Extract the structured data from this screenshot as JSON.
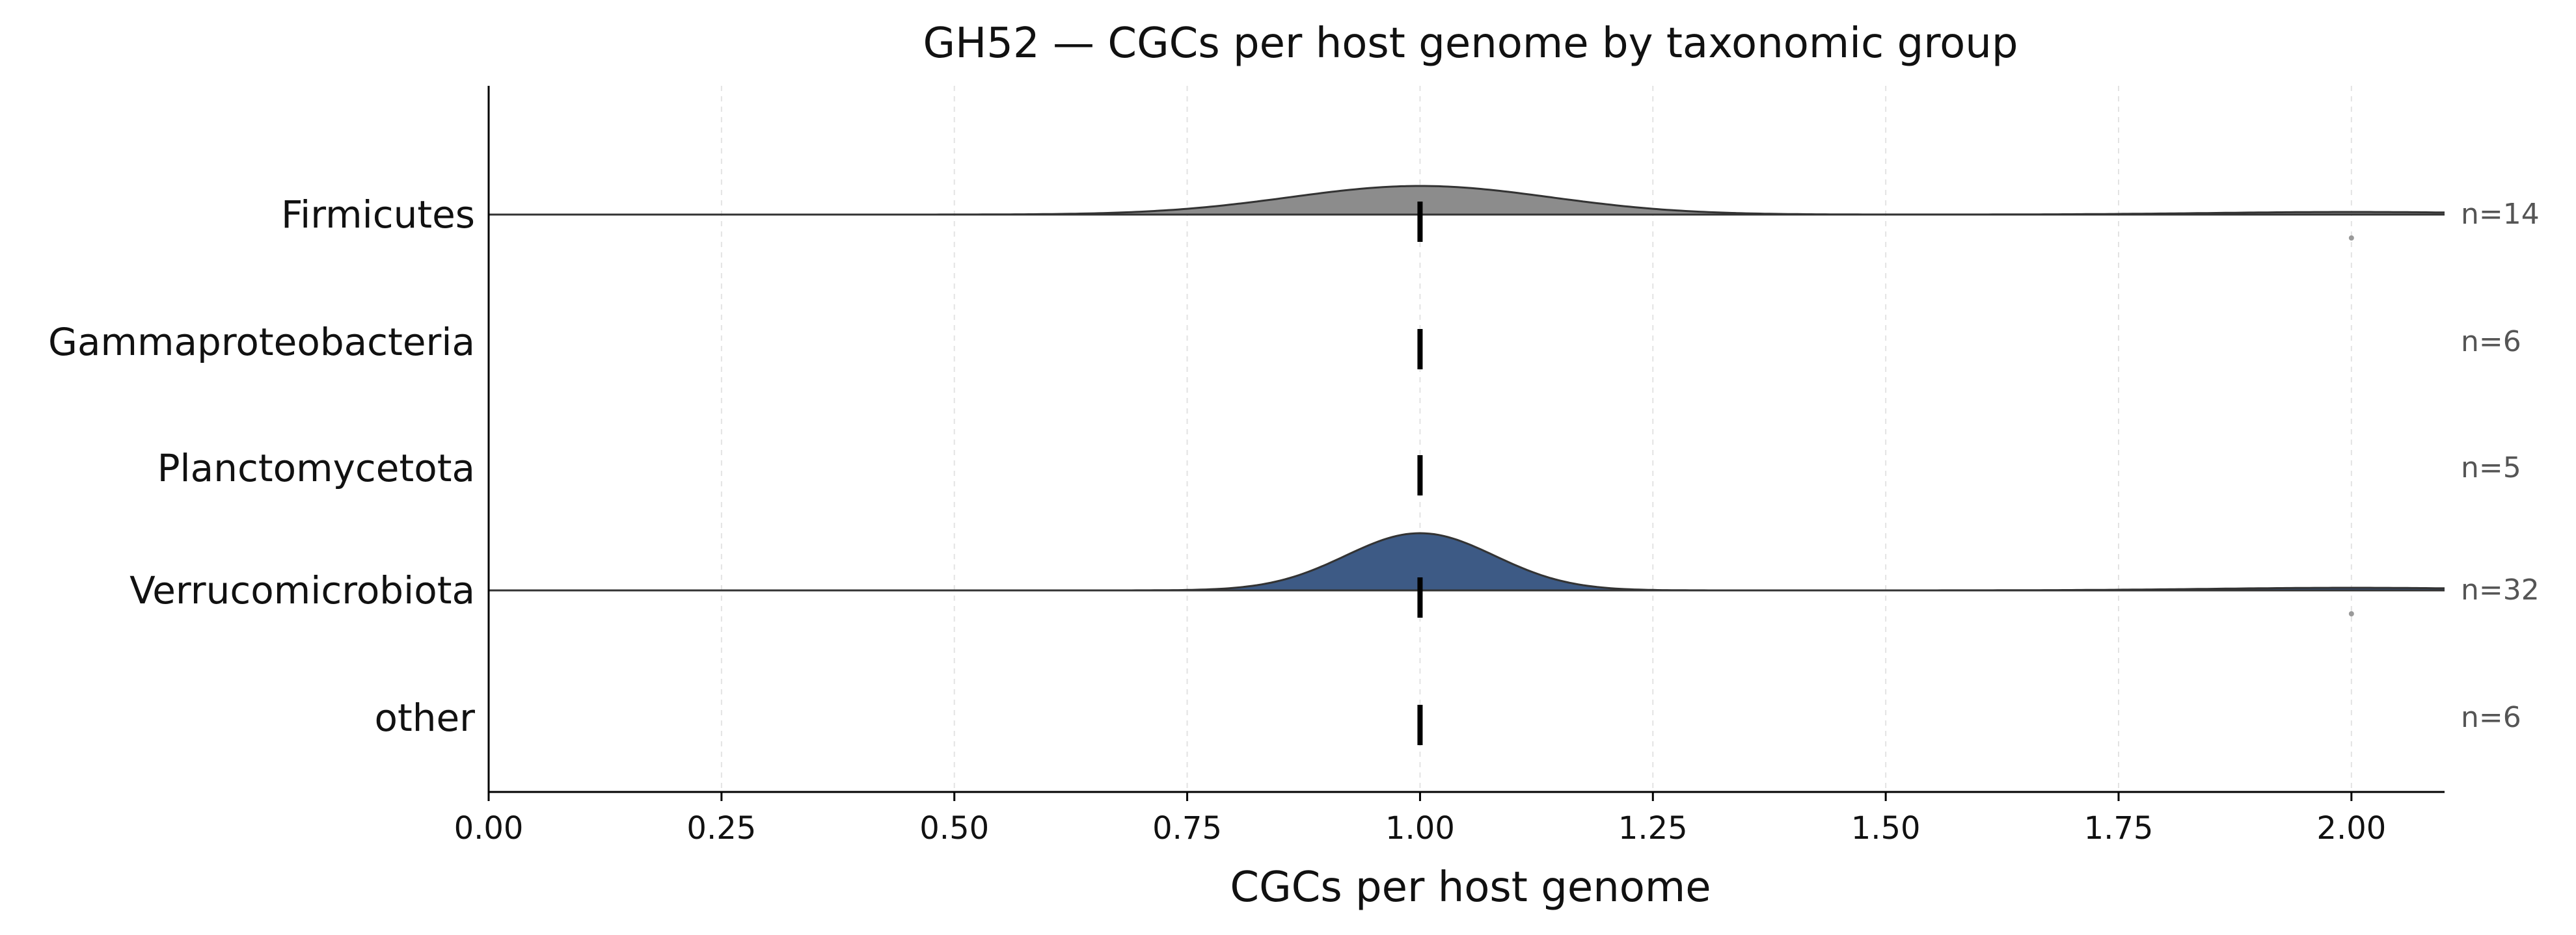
{
  "chart_data": {
    "type": "ridgeline",
    "title": "GH52 — CGCs per host genome by taxonomic group",
    "xlabel": "CGCs per host genome",
    "xlim": [
      0,
      2.1
    ],
    "xticks": [
      "0.00",
      "0.25",
      "0.50",
      "0.75",
      "1.00",
      "1.25",
      "1.50",
      "1.75",
      "2.00"
    ],
    "grid": "x, dashed",
    "groups": [
      {
        "name": "Firmicutes",
        "n_label": "n=14",
        "n": 14,
        "median": 1.0,
        "has_density": true,
        "mode_rel_height": 0.4,
        "spread": 0.14,
        "tail_at": 2.0,
        "outlier": 2.0,
        "color": "#8c8c8c"
      },
      {
        "name": "Gammaproteobacteria",
        "n_label": "n=6",
        "n": 6,
        "median": 1.0,
        "has_density": false
      },
      {
        "name": "Planctomycetota",
        "n_label": "n=5",
        "n": 5,
        "median": 1.0,
        "has_density": false
      },
      {
        "name": "Verrucomicrobiota",
        "n_label": "n=32",
        "n": 32,
        "median": 1.0,
        "has_density": true,
        "mode_rel_height": 0.8,
        "spread": 0.08,
        "tail_at": 2.0,
        "outlier": 2.0,
        "color": "#3d5a85"
      },
      {
        "name": "other",
        "n_label": "n=6",
        "n": 6,
        "median": 1.0,
        "has_density": false
      }
    ]
  }
}
